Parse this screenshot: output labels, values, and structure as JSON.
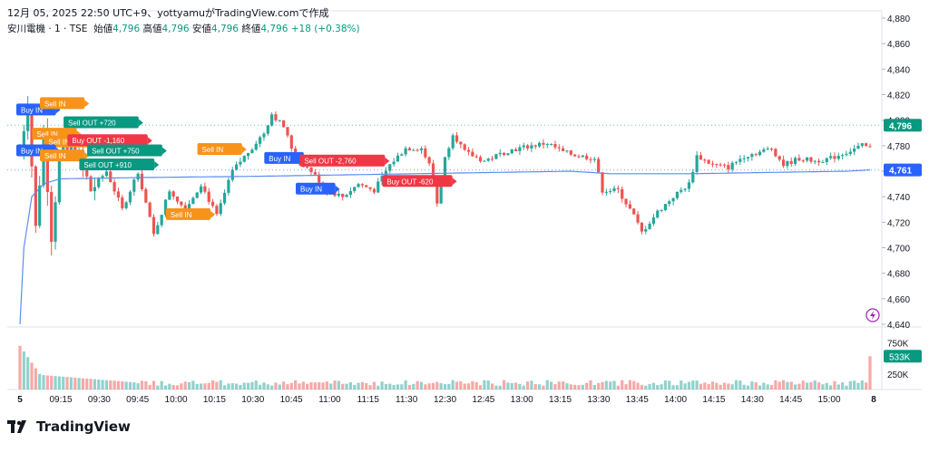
{
  "header": {
    "created_line": "12月 05, 2025 22:50 UTC+9、yottyamuがTradingView.comで作成",
    "symbol": "安川電機 · 1 · TSE",
    "open_label": "始値",
    "open_value": "4,796",
    "high_label": "高値",
    "high_value": "4,796",
    "low_label": "安値",
    "low_value": "4,796",
    "close_label": "終値",
    "close_value": "4,796",
    "change": "+18 (+0.38%)"
  },
  "logo": {
    "text": "TradingView",
    "icon": "tradingview-logo-icon"
  },
  "colors": {
    "up": "#089981",
    "down": "#f23645",
    "up_candle": "#26a69a",
    "down_candle": "#ef5350",
    "vwap": "#5b8def",
    "buy": "#2962ff",
    "sell": "#f7931a",
    "grid": "#f0f3fa"
  },
  "chart_data": [
    {
      "type": "candlestick",
      "title": "",
      "price_axis": {
        "ticks": [
          "4,880",
          "4,860",
          "4,840",
          "4,820",
          "4,800",
          "4,780",
          "4,760",
          "4,740",
          "4,720",
          "4,700",
          "4,680",
          "4,660",
          "4,640"
        ],
        "ylim": [
          4640,
          4880
        ]
      },
      "time_axis": {
        "ticks": [
          "5",
          "09:15",
          "09:30",
          "09:45",
          "10:00",
          "10:15",
          "10:30",
          "10:45",
          "11:00",
          "11:15",
          "11:30",
          "12:30",
          "12:45",
          "13:00",
          "13:15",
          "13:30",
          "13:45",
          "14:00",
          "14:15",
          "14:30",
          "14:45",
          "15:00",
          "8"
        ]
      },
      "last_price_label": "4,796",
      "indicator_label": "4,761",
      "indicator_name": "",
      "anchors": [
        {
          "i": 0,
          "p": 4775
        },
        {
          "i": 2,
          "p": 4815
        },
        {
          "i": 4,
          "p": 4715
        },
        {
          "i": 6,
          "p": 4790
        },
        {
          "i": 8,
          "p": 4710
        },
        {
          "i": 10,
          "p": 4770
        },
        {
          "i": 14,
          "p": 4780
        },
        {
          "i": 18,
          "p": 4745
        },
        {
          "i": 22,
          "p": 4760
        },
        {
          "i": 26,
          "p": 4730
        },
        {
          "i": 30,
          "p": 4760
        },
        {
          "i": 34,
          "p": 4710
        },
        {
          "i": 38,
          "p": 4745
        },
        {
          "i": 42,
          "p": 4730
        },
        {
          "i": 46,
          "p": 4750
        },
        {
          "i": 50,
          "p": 4725
        },
        {
          "i": 54,
          "p": 4760
        },
        {
          "i": 58,
          "p": 4775
        },
        {
          "i": 62,
          "p": 4790
        },
        {
          "i": 64,
          "p": 4805
        },
        {
          "i": 67,
          "p": 4795
        },
        {
          "i": 70,
          "p": 4770
        },
        {
          "i": 74,
          "p": 4760
        },
        {
          "i": 78,
          "p": 4745
        },
        {
          "i": 82,
          "p": 4740
        },
        {
          "i": 86,
          "p": 4750
        },
        {
          "i": 90,
          "p": 4745
        },
        {
          "i": 94,
          "p": 4765
        },
        {
          "i": 98,
          "p": 4778
        },
        {
          "i": 102,
          "p": 4778
        },
        {
          "i": 104,
          "p": 4765
        },
        {
          "i": 106,
          "p": 4735
        },
        {
          "i": 108,
          "p": 4770
        },
        {
          "i": 110,
          "p": 4790
        },
        {
          "i": 113,
          "p": 4775
        },
        {
          "i": 118,
          "p": 4768
        },
        {
          "i": 124,
          "p": 4776
        },
        {
          "i": 130,
          "p": 4780
        },
        {
          "i": 134,
          "p": 4782
        },
        {
          "i": 138,
          "p": 4775
        },
        {
          "i": 142,
          "p": 4772
        },
        {
          "i": 146,
          "p": 4770
        },
        {
          "i": 148,
          "p": 4745
        },
        {
          "i": 152,
          "p": 4745
        },
        {
          "i": 156,
          "p": 4725
        },
        {
          "i": 158,
          "p": 4712
        },
        {
          "i": 162,
          "p": 4728
        },
        {
          "i": 166,
          "p": 4740
        },
        {
          "i": 170,
          "p": 4750
        },
        {
          "i": 172,
          "p": 4772
        },
        {
          "i": 176,
          "p": 4765
        },
        {
          "i": 180,
          "p": 4763
        },
        {
          "i": 184,
          "p": 4772
        },
        {
          "i": 188,
          "p": 4775
        },
        {
          "i": 191,
          "p": 4778
        },
        {
          "i": 194,
          "p": 4765
        },
        {
          "i": 198,
          "p": 4770
        },
        {
          "i": 202,
          "p": 4768
        },
        {
          "i": 206,
          "p": 4770
        },
        {
          "i": 210,
          "p": 4775
        },
        {
          "i": 214,
          "p": 4780
        },
        {
          "i": 216,
          "p": 4778
        }
      ],
      "vwap_anchors": [
        {
          "i": 0,
          "p": 4640
        },
        {
          "i": 1,
          "p": 4700
        },
        {
          "i": 3,
          "p": 4740
        },
        {
          "i": 6,
          "p": 4750
        },
        {
          "i": 10,
          "p": 4754
        },
        {
          "i": 30,
          "p": 4755
        },
        {
          "i": 60,
          "p": 4756
        },
        {
          "i": 80,
          "p": 4757
        },
        {
          "i": 100,
          "p": 4758
        },
        {
          "i": 140,
          "p": 4760
        },
        {
          "i": 150,
          "p": 4758
        },
        {
          "i": 170,
          "p": 4758
        },
        {
          "i": 210,
          "p": 4760
        },
        {
          "i": 216,
          "p": 4761
        }
      ],
      "candle_count": 217,
      "trade_markers": [
        {
          "label": "Buy IN",
          "side": "buy",
          "i": 0,
          "p": 4808
        },
        {
          "label": "Sell IN",
          "side": "sell",
          "i": 6,
          "p": 4813
        },
        {
          "label": "Sell OUT +720",
          "side": "out-up",
          "i": 12,
          "p": 4798
        },
        {
          "label": "Sell IN",
          "side": "sell",
          "i": 4,
          "p": 4789
        },
        {
          "label": "Sell IN",
          "side": "sell",
          "i": 7,
          "p": 4783
        },
        {
          "label": "Buy OUT -1,160",
          "side": "out-down",
          "i": 13,
          "p": 4784
        },
        {
          "label": "Buy IN",
          "side": "buy",
          "i": 0,
          "p": 4776
        },
        {
          "label": "Sell IN",
          "side": "sell",
          "i": 6,
          "p": 4772
        },
        {
          "label": "Sell OUT +750",
          "side": "out-up",
          "i": 18,
          "p": 4776
        },
        {
          "label": "Sell OUT +910",
          "side": "out-up",
          "i": 16,
          "p": 4765
        },
        {
          "label": "Sell IN",
          "side": "sell",
          "i": 46,
          "p": 4777
        },
        {
          "label": "Sell IN",
          "side": "sell",
          "i": 38,
          "p": 4726
        },
        {
          "label": "Buy IN",
          "side": "buy",
          "i": 63,
          "p": 4770
        },
        {
          "label": "Sell OUT -2,760",
          "side": "out-down",
          "i": 72,
          "p": 4768
        },
        {
          "label": "Buy IN",
          "side": "buy",
          "i": 71,
          "p": 4746
        },
        {
          "label": "Buy OUT -620",
          "side": "out-down",
          "i": 93,
          "p": 4752
        }
      ],
      "volume": {
        "axis_ticks": [
          "750K",
          "250K"
        ],
        "last_label": "533K",
        "ymax": 900
      }
    }
  ]
}
